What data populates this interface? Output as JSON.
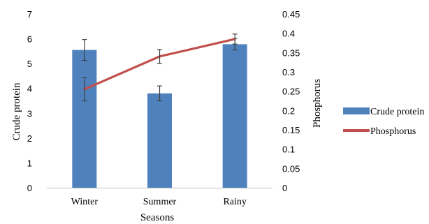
{
  "chart_data": {
    "type": "bar",
    "categories": [
      "Winter",
      "Summer",
      "Rainy"
    ],
    "xlabel": "Seasons",
    "series": [
      {
        "name": "Crude protein",
        "type": "bar",
        "axis": "left",
        "values": [
          5.55,
          3.8,
          5.78
        ],
        "error": [
          0.42,
          0.3,
          0.23
        ],
        "color": "#4f81bd"
      },
      {
        "name": "Phosphorus",
        "type": "line",
        "axis": "right",
        "values": [
          0.255,
          0.34,
          0.385
        ],
        "error": [
          0.03,
          0.018,
          0.013
        ],
        "color": "#c0504d"
      }
    ],
    "y_left": {
      "label": "Crude protein",
      "min": 0,
      "max": 7,
      "ticks": [
        "0",
        "1",
        "2",
        "3",
        "4",
        "5",
        "6",
        "7"
      ]
    },
    "y_right": {
      "label": "Phosphorus",
      "min": 0,
      "max": 0.45,
      "ticks": [
        "0",
        "0.05",
        "0.1",
        "0.15",
        "0.2",
        "0.25",
        "0.3",
        "0.35",
        "0.4",
        "0.45"
      ]
    },
    "grid": false,
    "legend_position": "right",
    "errorbar_color": "#404040",
    "axis_color": "#bfbfbf"
  }
}
